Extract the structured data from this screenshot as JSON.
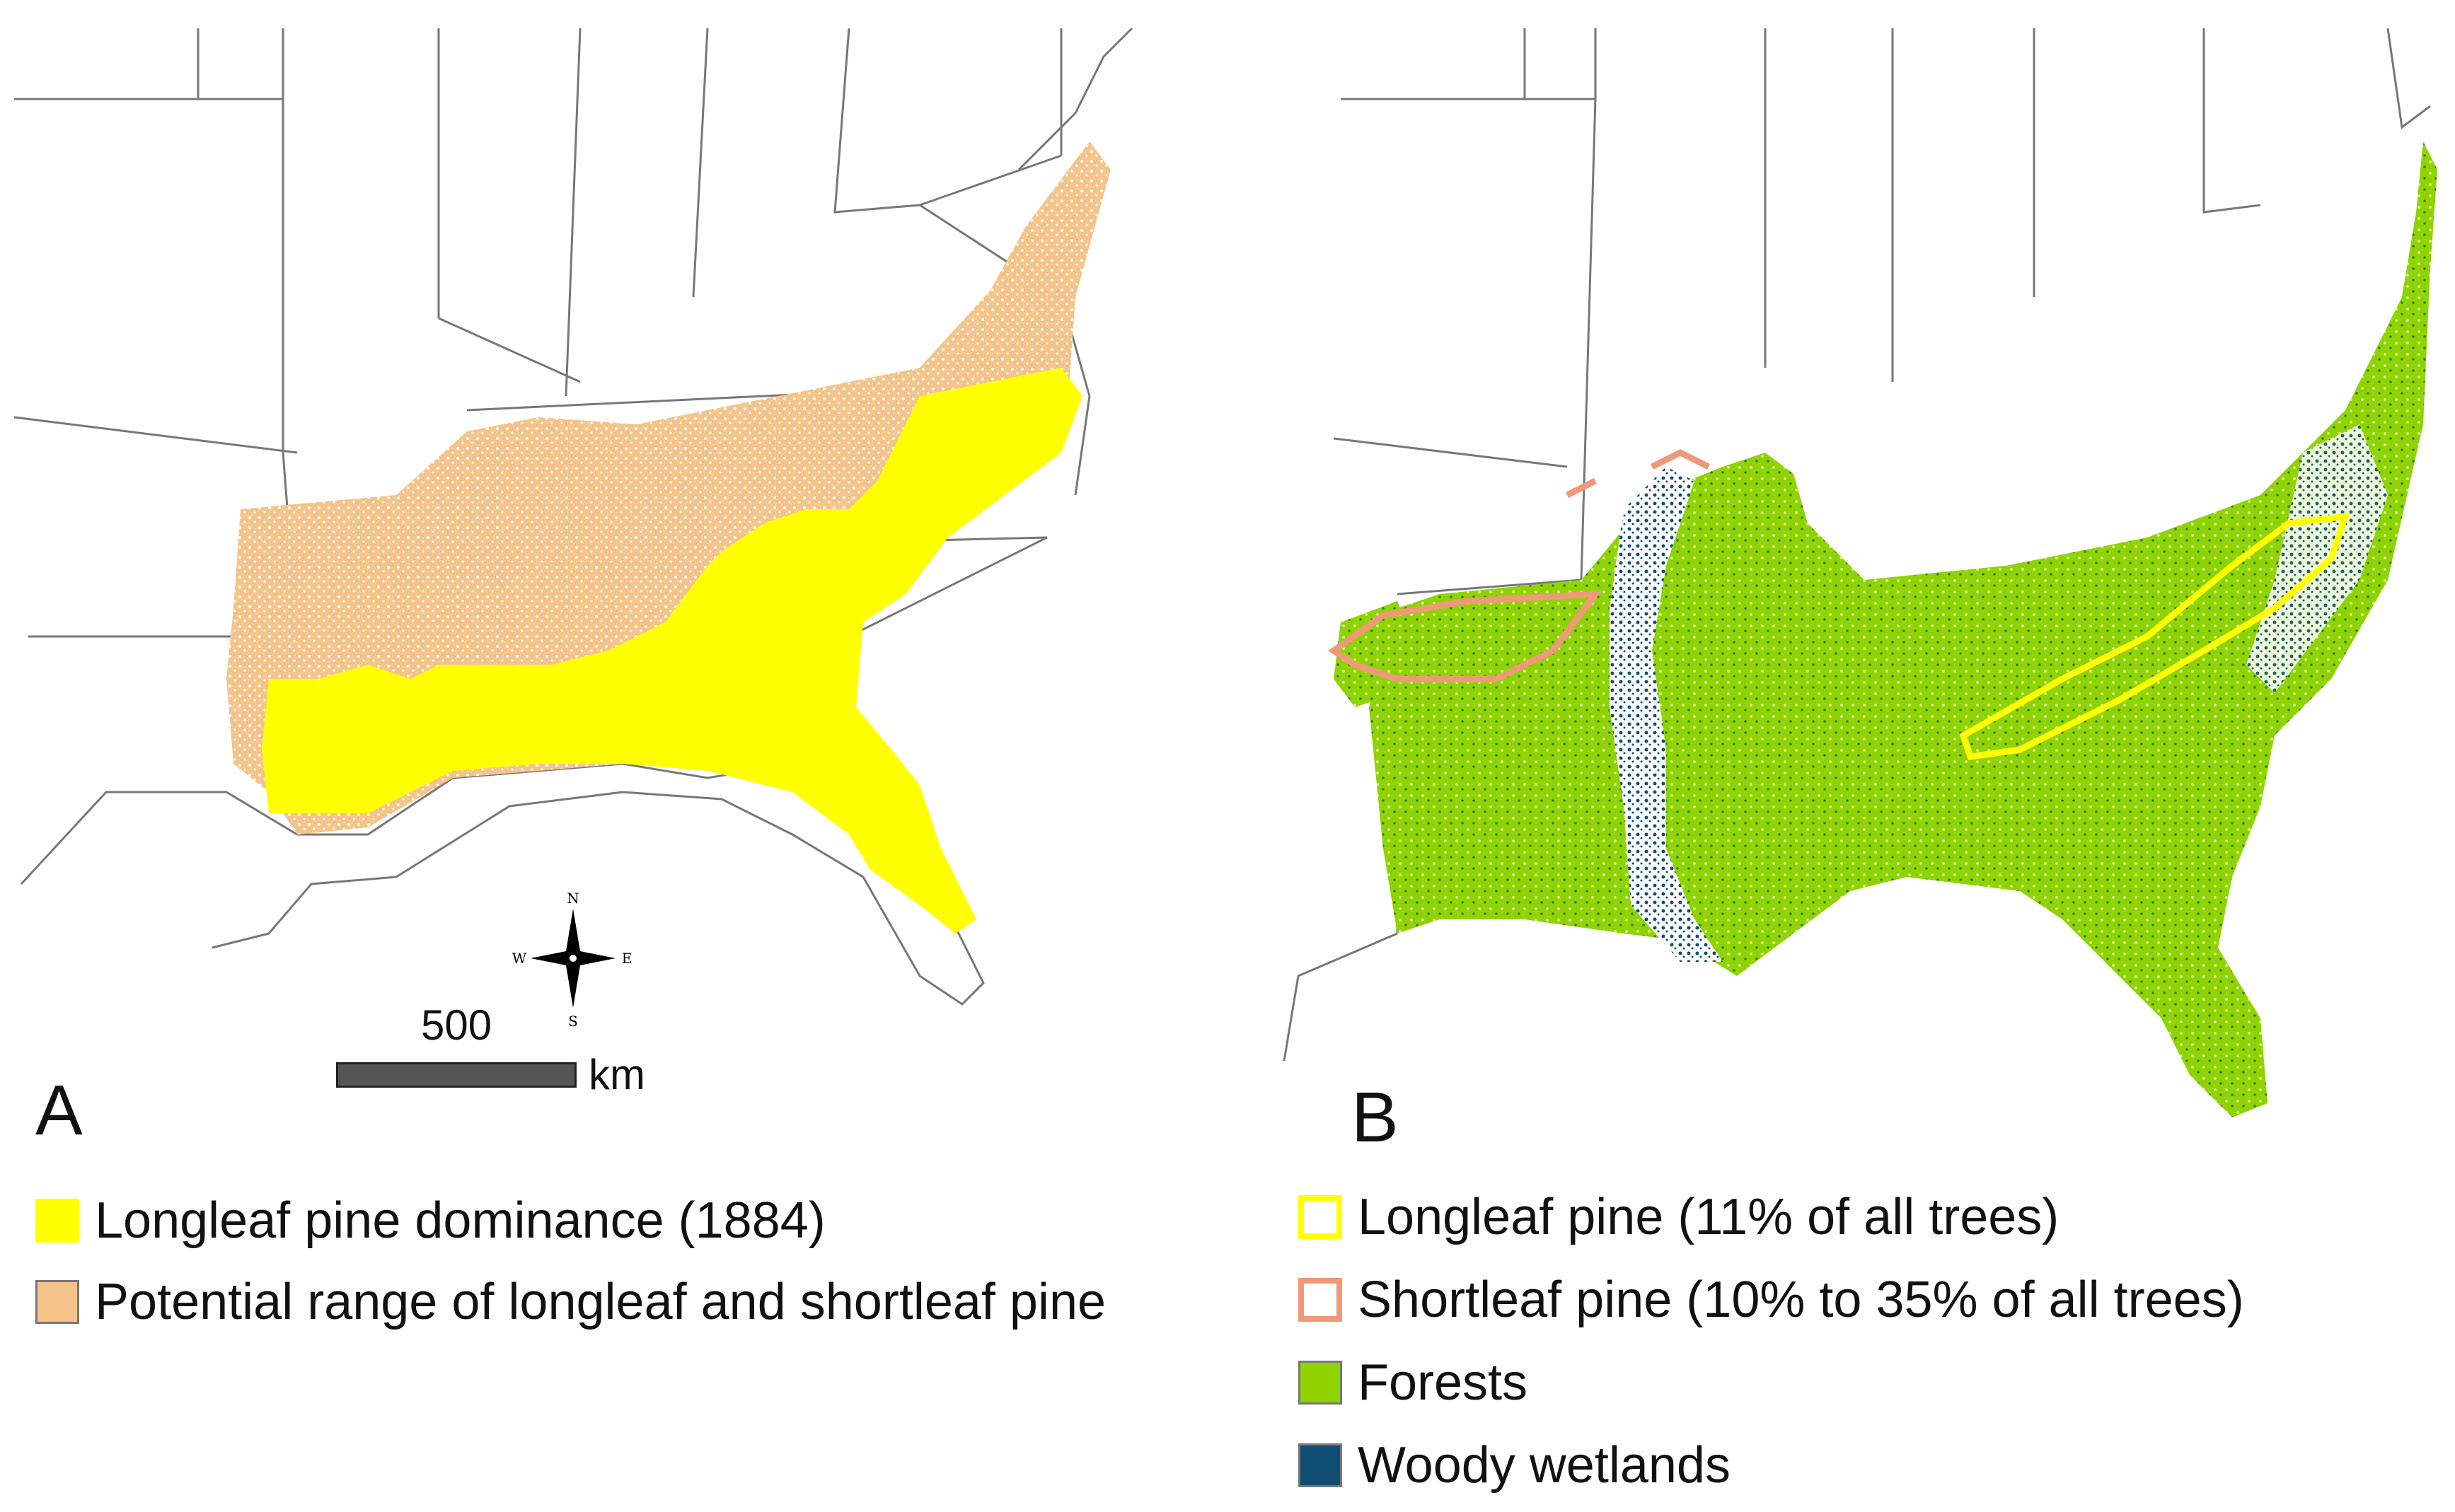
{
  "colors": {
    "longleaf_dominance": "#ffff00",
    "potential_range": "#f5c48a",
    "longleaf_outline": "#ffff00",
    "shortleaf_outline": "#f0997a",
    "forests": "#8fd400",
    "woody_wetlands": "#0f4d73",
    "state_borders": "#777777",
    "scalebar": "#555555"
  },
  "panel_a": {
    "letter": "A",
    "legend": [
      {
        "label": "Longleaf pine dominance (1884)",
        "color_key": "longleaf_dominance"
      },
      {
        "label": "Potential range of longleaf and shortleaf pine",
        "color_key": "potential_range"
      }
    ],
    "scale_bar": {
      "value": "500",
      "unit": "km"
    },
    "compass": {
      "north": "N",
      "south": "S",
      "east": "E",
      "west": "W"
    }
  },
  "panel_b": {
    "letter": "B",
    "legend": [
      {
        "label": "Longleaf pine (11% of all trees)",
        "color_key": "longleaf_outline",
        "style": "outline"
      },
      {
        "label": "Shortleaf pine (10% to 35% of all trees)",
        "color_key": "shortleaf_outline",
        "style": "outline"
      },
      {
        "label": "Forests",
        "color_key": "forests",
        "style": "fill"
      },
      {
        "label": "Woody wetlands",
        "color_key": "woody_wetlands",
        "style": "fill"
      }
    ]
  }
}
